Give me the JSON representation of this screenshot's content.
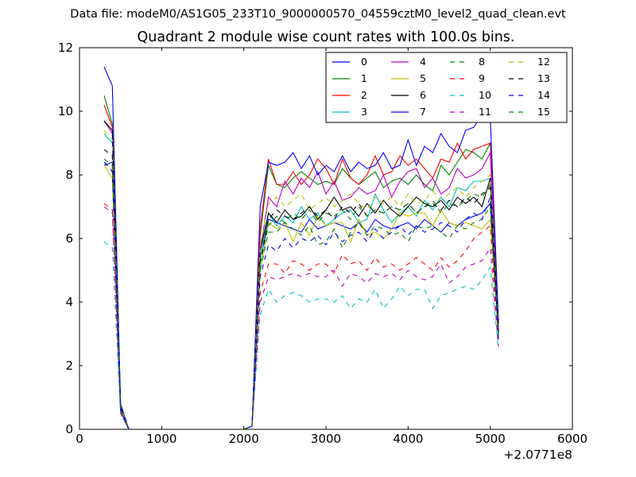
{
  "chart_data": {
    "type": "line",
    "suptitle": "Data file: modeM0/AS1G05_233T10_9000000570_04559cztM0_level2_quad_clean.evt",
    "title": "Quadrant 2 module wise count rates with 100.0s bins.",
    "xlabel": "",
    "ylabel": "",
    "x_offset_label": "+2.0771e8",
    "xlim": [
      0,
      6000
    ],
    "ylim": [
      0,
      12
    ],
    "xticks": [
      0,
      1000,
      2000,
      3000,
      4000,
      5000,
      6000
    ],
    "xtick_labels": [
      "0",
      "1000",
      "2000",
      "3000",
      "4000",
      "5000",
      "6000"
    ],
    "yticks": [
      0,
      2,
      4,
      6,
      8,
      10,
      12
    ],
    "ytick_labels": [
      "0",
      "2",
      "4",
      "6",
      "8",
      "10",
      "12"
    ],
    "grid": false,
    "legend_position": "top-right",
    "legend_columns": 4,
    "x": [
      300,
      400,
      500,
      600,
      700,
      800,
      900,
      1000,
      1100,
      1200,
      1300,
      1400,
      1500,
      1600,
      1700,
      1800,
      1900,
      2000,
      2100,
      2200,
      2300,
      2400,
      2500,
      2600,
      2700,
      2800,
      2900,
      3000,
      3100,
      3200,
      3300,
      3400,
      3500,
      3600,
      3700,
      3800,
      3900,
      4000,
      4100,
      4200,
      4300,
      4400,
      4500,
      4600,
      4700,
      4800,
      4900,
      5000,
      5100
    ],
    "series": [
      {
        "name": "0",
        "color": "#0000ff",
        "dash": "solid",
        "values": [
          8.3,
          8.4,
          0.6,
          0,
          0,
          0,
          0,
          0,
          0,
          0,
          0,
          0,
          0,
          0,
          0,
          0,
          0,
          0,
          0.1,
          5.3,
          6.6,
          6.5,
          6.4,
          6.3,
          6.2,
          6.6,
          6.3,
          6.4,
          6.5,
          6.4,
          6.3,
          6.5,
          6.2,
          6.6,
          6.4,
          6.3,
          6.4,
          6.5,
          6.3,
          6.6,
          6.4,
          6.2,
          6.5,
          6.4,
          6.6,
          6.7,
          6.8,
          7.1,
          3.0
        ]
      },
      {
        "name": "1",
        "color": "#008000",
        "dash": "solid",
        "values": [
          10.5,
          9.6,
          0.7,
          0,
          0,
          0,
          0,
          0,
          0,
          0,
          0,
          0,
          0,
          0,
          0,
          0,
          0,
          0,
          0.1,
          6.1,
          8.3,
          7.7,
          7.6,
          7.9,
          8.1,
          7.9,
          7.7,
          7.8,
          7.7,
          8.2,
          7.9,
          7.7,
          7.9,
          8.1,
          7.6,
          7.8,
          7.9,
          7.7,
          8.0,
          7.7,
          7.5,
          8.3,
          8.0,
          8.4,
          8.8,
          8.7,
          8.5,
          9.0,
          3.2
        ]
      },
      {
        "name": "2",
        "color": "#ff0000",
        "dash": "solid",
        "values": [
          10.2,
          9.5,
          0.7,
          0,
          0,
          0,
          0,
          0,
          0,
          0,
          0,
          0,
          0,
          0,
          0,
          0,
          0,
          0,
          0.1,
          6.3,
          8.5,
          7.7,
          7.7,
          8.1,
          7.7,
          8.0,
          8.5,
          8.2,
          7.7,
          8.5,
          7.9,
          7.7,
          8.0,
          8.6,
          8.0,
          8.1,
          8.6,
          8.3,
          8.5,
          8.2,
          7.9,
          8.5,
          8.4,
          9.0,
          8.5,
          8.8,
          8.9,
          9.0,
          3.3
        ]
      },
      {
        "name": "3",
        "color": "#00bfbf",
        "dash": "solid",
        "values": [
          9.3,
          9.0,
          0.7,
          0,
          0,
          0,
          0,
          0,
          0,
          0,
          0,
          0,
          0,
          0,
          0,
          0,
          0,
          0,
          0.1,
          5.3,
          6.8,
          6.4,
          6.7,
          6.5,
          7.0,
          6.6,
          6.8,
          6.4,
          6.6,
          6.8,
          6.9,
          6.5,
          6.6,
          7.4,
          6.9,
          6.5,
          6.8,
          7.0,
          6.7,
          7.2,
          6.9,
          7.3,
          7.0,
          7.6,
          7.5,
          7.8,
          7.8,
          7.9,
          3.0
        ]
      },
      {
        "name": "4",
        "color": "#bf00bf",
        "dash": "solid",
        "values": [
          9.7,
          9.3,
          0.7,
          0,
          0,
          0,
          0,
          0,
          0,
          0,
          0,
          0,
          0,
          0,
          0,
          0,
          0,
          0,
          0.1,
          5.6,
          7.3,
          7.0,
          7.8,
          7.4,
          7.9,
          7.6,
          8.1,
          7.4,
          7.8,
          7.2,
          7.3,
          7.6,
          7.4,
          7.5,
          8.0,
          7.3,
          7.8,
          8.1,
          8.2,
          7.6,
          7.9,
          7.4,
          7.6,
          8.2,
          7.9,
          8.0,
          8.2,
          8.7,
          3.0
        ]
      },
      {
        "name": "5",
        "color": "#bfbf00",
        "dash": "solid",
        "values": [
          8.3,
          7.9,
          0.6,
          0,
          0,
          0,
          0,
          0,
          0,
          0,
          0,
          0,
          0,
          0,
          0,
          0,
          0,
          0,
          0.1,
          5.0,
          6.5,
          6.3,
          6.5,
          5.9,
          6.5,
          6.1,
          6.7,
          6.4,
          6.5,
          6.5,
          5.9,
          6.6,
          6.1,
          6.2,
          6.0,
          6.3,
          6.8,
          6.7,
          6.8,
          6.8,
          6.4,
          6.9,
          6.5,
          6.4,
          6.5,
          6.4,
          6.3,
          6.6,
          2.9
        ]
      },
      {
        "name": "6",
        "color": "#000000",
        "dash": "solid",
        "values": [
          9.7,
          9.4,
          0.7,
          0,
          0,
          0,
          0,
          0,
          0,
          0,
          0,
          0,
          0,
          0,
          0,
          0,
          0,
          0,
          0.1,
          5.6,
          6.8,
          6.5,
          6.9,
          6.6,
          6.7,
          7.0,
          6.6,
          6.9,
          7.3,
          6.9,
          7.0,
          6.7,
          7.1,
          6.8,
          7.2,
          6.9,
          6.7,
          7.0,
          7.3,
          7.1,
          7.0,
          7.2,
          6.9,
          7.3,
          7.1,
          7.3,
          7.0,
          7.9,
          3.1
        ]
      },
      {
        "name": "7",
        "color": "#0000ff",
        "dash": "solid",
        "values": [
          11.4,
          10.8,
          0.8,
          0,
          0,
          0,
          0,
          0,
          0,
          0,
          0,
          0,
          0,
          0,
          0,
          0,
          0,
          0,
          0.1,
          7.0,
          8.4,
          8.3,
          8.4,
          8.7,
          8.2,
          8.6,
          8.0,
          8.3,
          8.1,
          8.6,
          8.1,
          8.4,
          8.2,
          8.3,
          8.7,
          8.2,
          8.3,
          9.1,
          8.3,
          8.9,
          8.7,
          9.3,
          8.9,
          8.7,
          9.4,
          9.5,
          9.9,
          9.8,
          3.4
        ]
      },
      {
        "name": "8",
        "color": "#008000",
        "dash": "dashed",
        "values": [
          8.4,
          8.2,
          0.6,
          0,
          0,
          0,
          0,
          0,
          0,
          0,
          0,
          0,
          0,
          0,
          0,
          0,
          0,
          0,
          0.1,
          5.0,
          6.2,
          6.2,
          6.5,
          6.3,
          6.1,
          6.4,
          5.8,
          5.9,
          6.3,
          5.7,
          6.2,
          6.5,
          6.1,
          6.4,
          6.3,
          6.1,
          6.2,
          5.9,
          6.4,
          6.3,
          6.4,
          6.2,
          6.0,
          6.4,
          6.3,
          6.5,
          6.6,
          7.0,
          2.9
        ]
      },
      {
        "name": "9",
        "color": "#ff0000",
        "dash": "dashed",
        "values": [
          7.1,
          6.9,
          0.5,
          0,
          0,
          0,
          0,
          0,
          0,
          0,
          0,
          0,
          0,
          0,
          0,
          0,
          0,
          0,
          0.1,
          4.3,
          5.2,
          5.2,
          4.9,
          5.3,
          5.2,
          5.0,
          5.2,
          5.2,
          4.9,
          5.5,
          5.2,
          5.3,
          5.0,
          5.4,
          5.1,
          5.2,
          5.0,
          5.2,
          5.4,
          5.2,
          5.0,
          5.4,
          5.1,
          5.3,
          5.6,
          6.0,
          6.2,
          6.4,
          2.6
        ]
      },
      {
        "name": "10",
        "color": "#00bfbf",
        "dash": "dashed",
        "values": [
          5.9,
          5.7,
          0.5,
          0,
          0,
          0,
          0,
          0,
          0,
          0,
          0,
          0,
          0,
          0,
          0,
          0,
          0,
          0,
          0.1,
          3.6,
          4.4,
          4.0,
          4.2,
          4.3,
          4.2,
          4.0,
          4.1,
          4.1,
          4.0,
          4.2,
          3.8,
          4.1,
          4.0,
          4.4,
          3.8,
          4.1,
          4.5,
          4.2,
          4.4,
          4.4,
          3.8,
          4.2,
          4.3,
          4.4,
          4.5,
          4.4,
          4.7,
          5.1,
          2.5
        ]
      },
      {
        "name": "11",
        "color": "#bf00bf",
        "dash": "dashed",
        "values": [
          7.0,
          6.8,
          0.5,
          0,
          0,
          0,
          0,
          0,
          0,
          0,
          0,
          0,
          0,
          0,
          0,
          0,
          0,
          0,
          0.1,
          4.0,
          4.8,
          4.7,
          4.8,
          4.9,
          4.8,
          4.9,
          4.8,
          4.8,
          5.0,
          4.5,
          4.9,
          4.8,
          4.6,
          4.9,
          4.8,
          4.9,
          4.7,
          5.0,
          4.8,
          4.7,
          4.8,
          5.2,
          4.6,
          4.8,
          5.1,
          5.2,
          5.3,
          5.7,
          2.6
        ]
      },
      {
        "name": "12",
        "color": "#bfbf00",
        "dash": "dashed",
        "values": [
          9.4,
          9.1,
          0.7,
          0,
          0,
          0,
          0,
          0,
          0,
          0,
          0,
          0,
          0,
          0,
          0,
          0,
          0,
          0,
          0.1,
          5.8,
          7.1,
          7.3,
          7.0,
          7.2,
          7.4,
          6.9,
          7.1,
          7.3,
          7.0,
          7.2,
          7.4,
          7.1,
          6.9,
          7.3,
          7.1,
          7.3,
          7.0,
          7.4,
          7.1,
          7.2,
          7.5,
          7.2,
          7.4,
          7.6,
          7.3,
          7.6,
          7.8,
          8.0,
          3.0
        ]
      },
      {
        "name": "13",
        "color": "#000000",
        "dash": "dashed",
        "values": [
          8.8,
          8.6,
          0.6,
          0,
          0,
          0,
          0,
          0,
          0,
          0,
          0,
          0,
          0,
          0,
          0,
          0,
          0,
          0,
          0.1,
          5.3,
          6.6,
          6.9,
          6.7,
          6.6,
          6.8,
          7.0,
          6.7,
          6.9,
          6.6,
          7.0,
          6.8,
          7.1,
          6.7,
          6.9,
          6.8,
          7.0,
          6.9,
          7.1,
          6.8,
          7.0,
          7.1,
          6.9,
          7.2,
          7.0,
          7.3,
          7.1,
          7.4,
          7.6,
          3.0
        ]
      },
      {
        "name": "14",
        "color": "#0000ff",
        "dash": "dashed",
        "values": [
          8.4,
          8.1,
          0.6,
          0,
          0,
          0,
          0,
          0,
          0,
          0,
          0,
          0,
          0,
          0,
          0,
          0,
          0,
          0,
          0.1,
          4.8,
          5.8,
          5.6,
          6.0,
          5.7,
          6.0,
          5.9,
          6.1,
          5.8,
          6.2,
          5.9,
          6.1,
          6.2,
          5.9,
          6.3,
          6.0,
          6.2,
          6.4,
          6.1,
          6.4,
          6.2,
          6.3,
          6.5,
          6.4,
          6.2,
          6.6,
          6.8,
          6.6,
          7.3,
          2.8
        ]
      },
      {
        "name": "15",
        "color": "#008000",
        "dash": "dashed",
        "values": [
          8.5,
          8.3,
          0.6,
          0,
          0,
          0,
          0,
          0,
          0,
          0,
          0,
          0,
          0,
          0,
          0,
          0,
          0,
          0,
          0.1,
          5.2,
          6.4,
          6.7,
          6.5,
          6.8,
          6.6,
          6.9,
          6.5,
          6.8,
          6.7,
          6.9,
          6.6,
          7.0,
          6.7,
          6.9,
          6.8,
          7.0,
          6.9,
          7.1,
          6.8,
          7.0,
          7.2,
          6.8,
          7.1,
          7.0,
          7.2,
          7.4,
          7.3,
          7.7,
          3.0
        ]
      }
    ]
  }
}
